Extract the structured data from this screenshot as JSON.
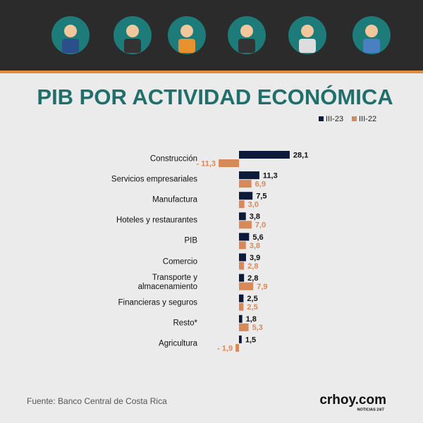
{
  "chart_data": {
    "type": "bar",
    "orientation": "horizontal",
    "title": "PIB POR ACTIVIDAD ECONÓMICA",
    "categories": [
      "Construcción",
      "Servicios empresariales",
      "Manufactura",
      "Hoteles y restaurantes",
      "PIB",
      "Comercio",
      "Transporte y almacenamiento",
      "Financieras y seguros",
      "Resto*",
      "Agricultura"
    ],
    "series": [
      {
        "name": "III-23",
        "color": "#0d1a3a",
        "values": [
          28.1,
          11.3,
          7.5,
          3.8,
          5.6,
          3.9,
          2.8,
          2.5,
          1.8,
          1.5
        ],
        "value_labels": [
          "28,1",
          "11,3",
          "7,5",
          "3,8",
          "5,6",
          "3,9",
          "2,8",
          "2,5",
          "1,8",
          "1,5"
        ]
      },
      {
        "name": "III-22",
        "color": "#d8895a",
        "values": [
          -11.3,
          6.9,
          3.0,
          7.0,
          3.8,
          2.8,
          7.9,
          2.5,
          5.3,
          -1.9
        ],
        "value_labels": [
          "- 11,3",
          "6,9",
          "3,0",
          "7,0",
          "3,8",
          "2,8",
          "7,9",
          "2,5",
          "5,3",
          "- 1,9"
        ]
      }
    ],
    "legend": "top-right"
  },
  "source": "Fuente: Banco Central de Costa Rica",
  "logo": {
    "name": "crhoy.com",
    "tagline": "NOTICIAS 24/7"
  }
}
